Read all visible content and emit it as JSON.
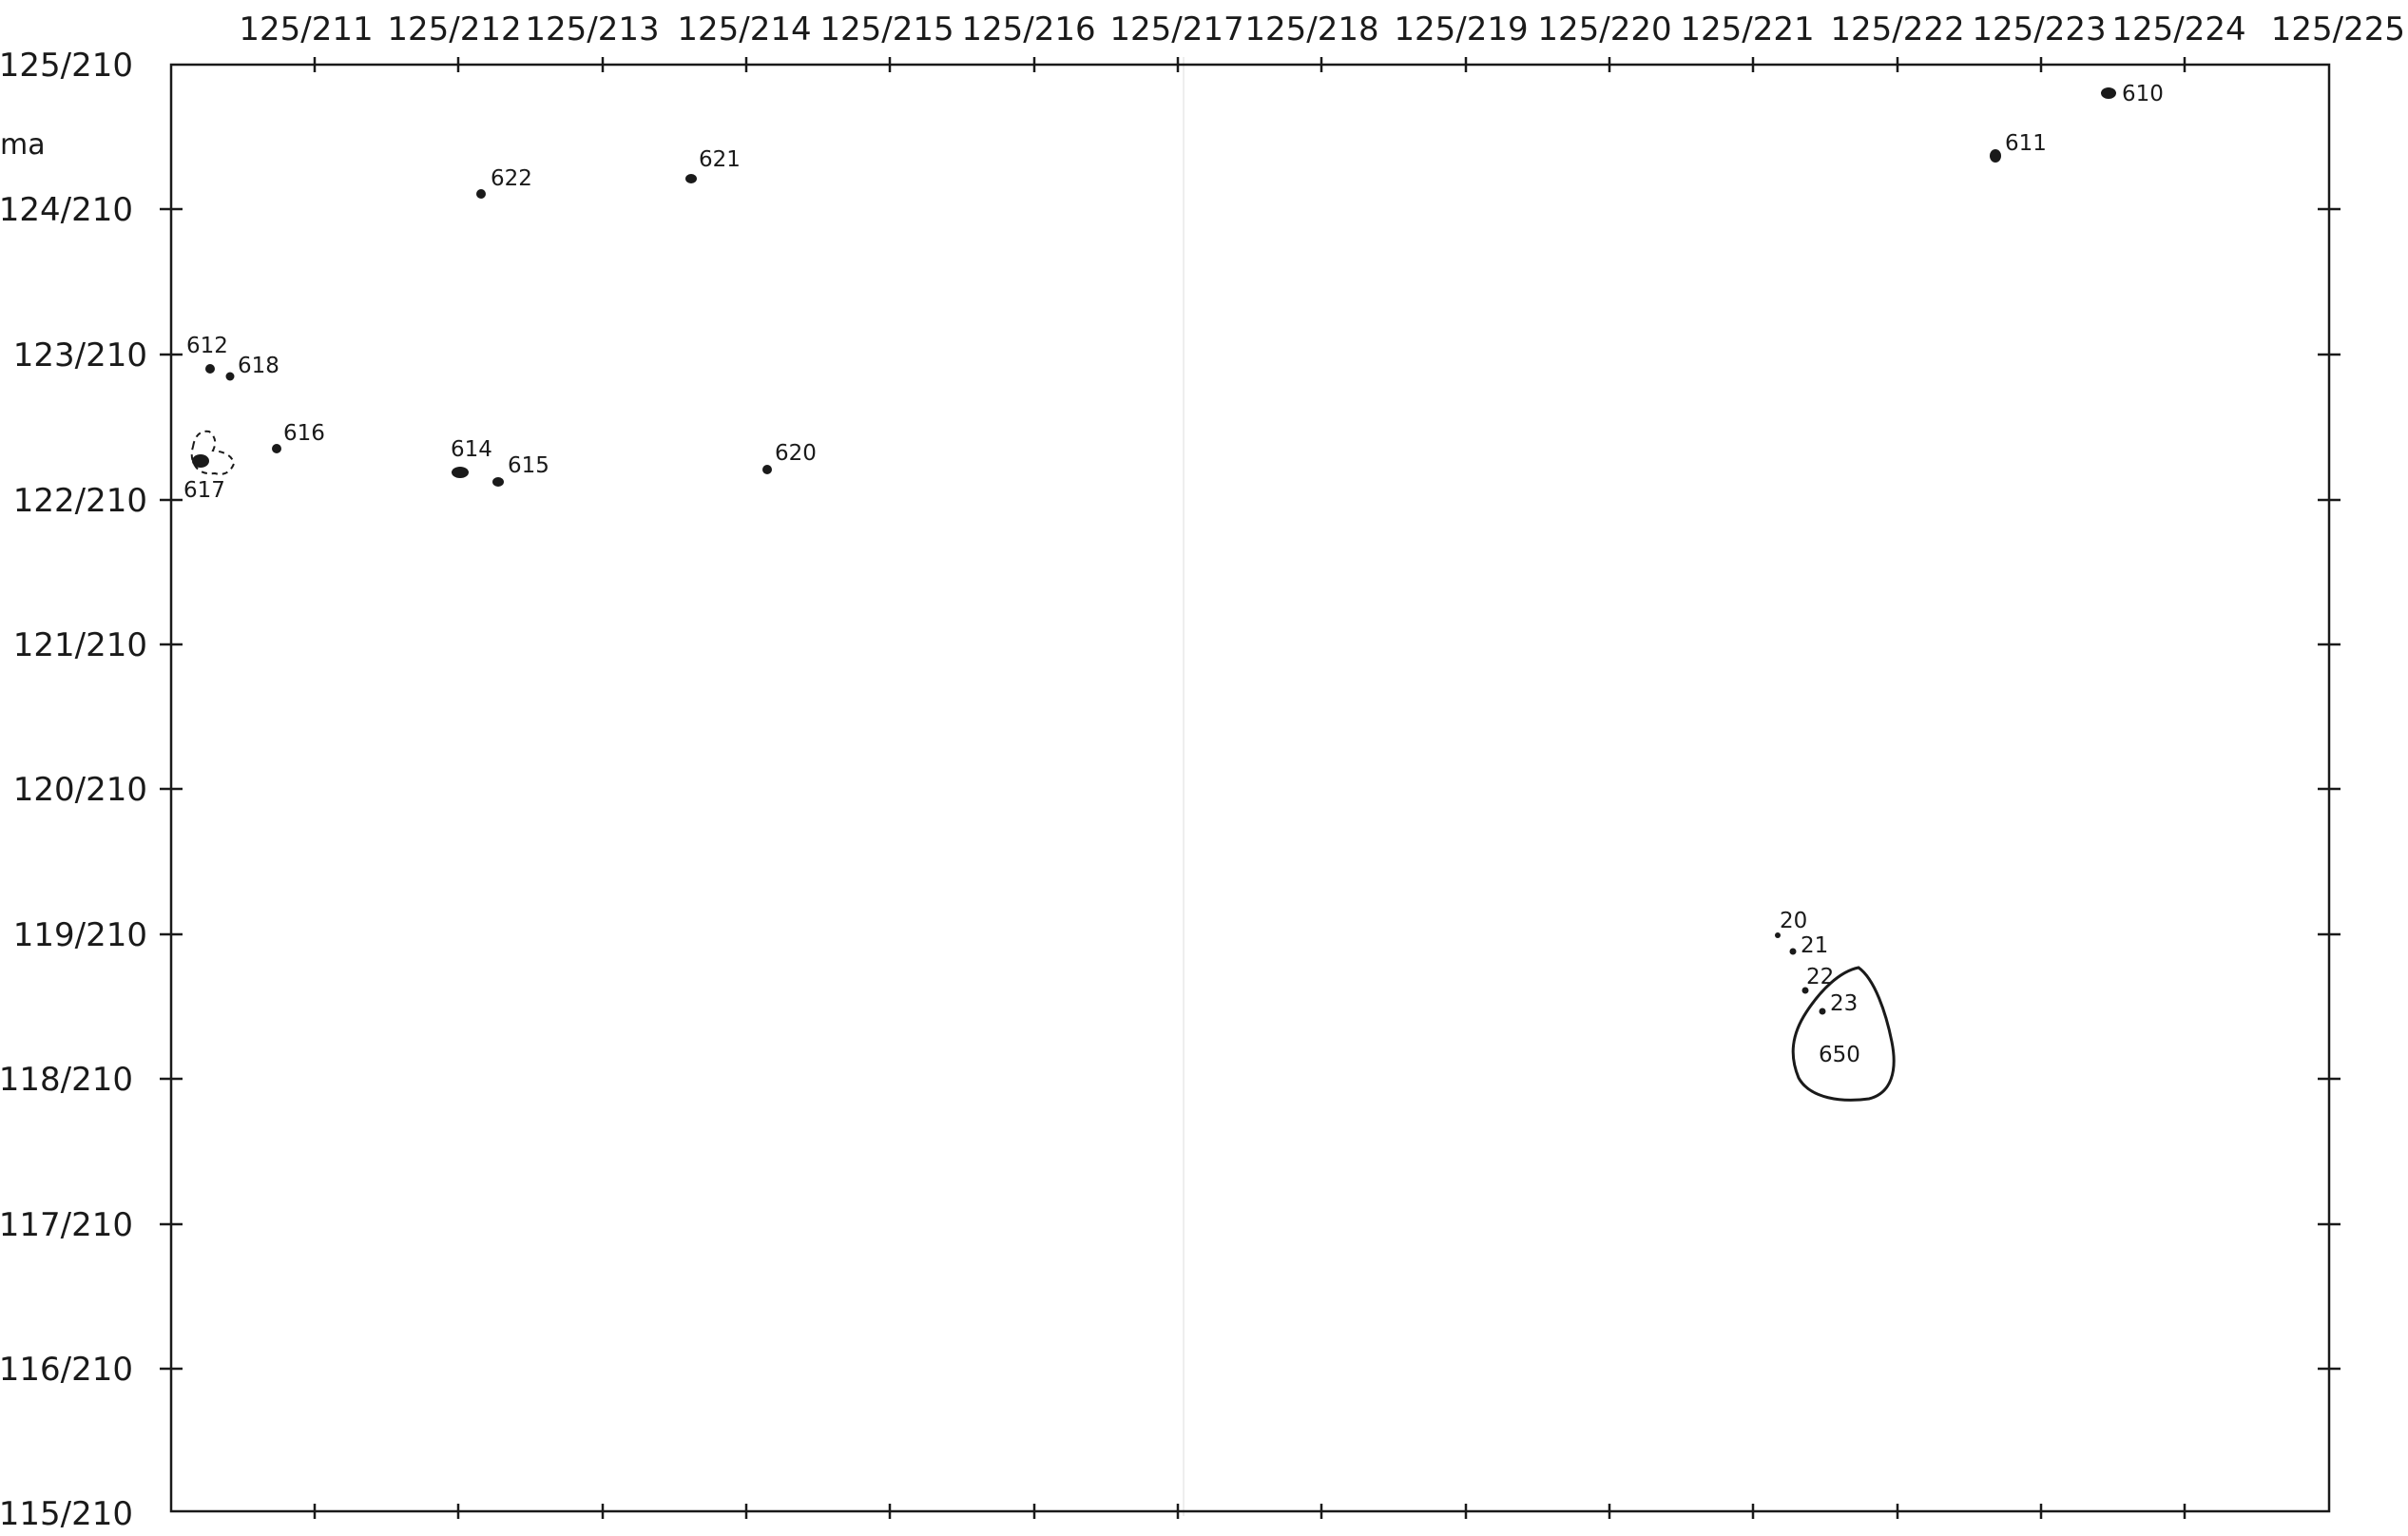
{
  "unit_label": "ma",
  "x_axis_labels": [
    "125/211",
    "125/212",
    "125/213",
    "125/214",
    "125/215",
    "125/216",
    "125/217",
    "125/218",
    "125/219",
    "125/220",
    "125/221",
    "125/222",
    "125/223",
    "125/224",
    "125/225"
  ],
  "y_axis_labels": [
    "125/210",
    "124/210",
    "123/210",
    "122/210",
    "121/210",
    "120/210",
    "119/210",
    "118/210",
    "117/210",
    "116/210",
    "115/210"
  ],
  "features": [
    {
      "id": "610",
      "label": "610",
      "shape": "dot"
    },
    {
      "id": "611",
      "label": "611",
      "shape": "dot"
    },
    {
      "id": "612",
      "label": "612",
      "shape": "dot"
    },
    {
      "id": "614",
      "label": "614",
      "shape": "dot"
    },
    {
      "id": "615",
      "label": "615",
      "shape": "dot"
    },
    {
      "id": "616",
      "label": "616",
      "shape": "dot"
    },
    {
      "id": "617",
      "label": "617",
      "shape": "dot with dashed outline"
    },
    {
      "id": "618",
      "label": "618",
      "shape": "dot"
    },
    {
      "id": "620",
      "label": "620",
      "shape": "dot"
    },
    {
      "id": "621",
      "label": "621",
      "shape": "dot"
    },
    {
      "id": "622",
      "label": "622",
      "shape": "dot"
    },
    {
      "id": "20",
      "label": "20",
      "shape": "dot"
    },
    {
      "id": "21",
      "label": "21",
      "shape": "dot"
    },
    {
      "id": "22",
      "label": "22",
      "shape": "dot"
    },
    {
      "id": "23",
      "label": "23",
      "shape": "dot"
    },
    {
      "id": "650",
      "label": "650",
      "shape": "outlined area"
    }
  ],
  "colors": {
    "ink": "#1a1a1a",
    "paper": "#ffffff"
  }
}
